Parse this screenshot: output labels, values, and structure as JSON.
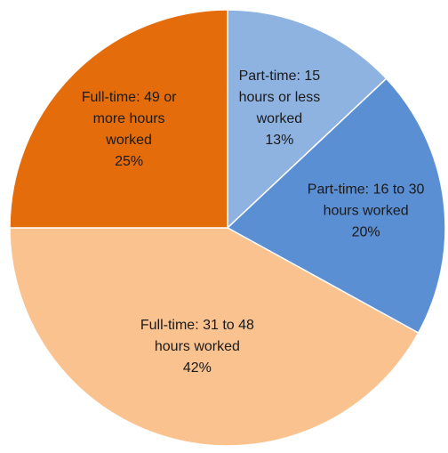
{
  "chart_data": {
    "type": "pie",
    "title": "",
    "start": "top, clockwise",
    "slices": [
      {
        "label_lines": [
          "Part-time: 15",
          "hours or less",
          "worked"
        ],
        "percent_label": "13%",
        "value": 13,
        "color": "#8fb3e1"
      },
      {
        "label_lines": [
          "Part-time: 16 to 30",
          "hours worked"
        ],
        "percent_label": "20%",
        "value": 20,
        "color": "#5b8fd4"
      },
      {
        "label_lines": [
          "Full-time: 31 to 48",
          "hours worked"
        ],
        "percent_label": "42%",
        "value": 42,
        "color": "#f9c28f"
      },
      {
        "label_lines": [
          "Full-time: 49 or",
          "more hours",
          "worked"
        ],
        "percent_label": "25%",
        "value": 25,
        "color": "#e46c0a"
      }
    ]
  }
}
